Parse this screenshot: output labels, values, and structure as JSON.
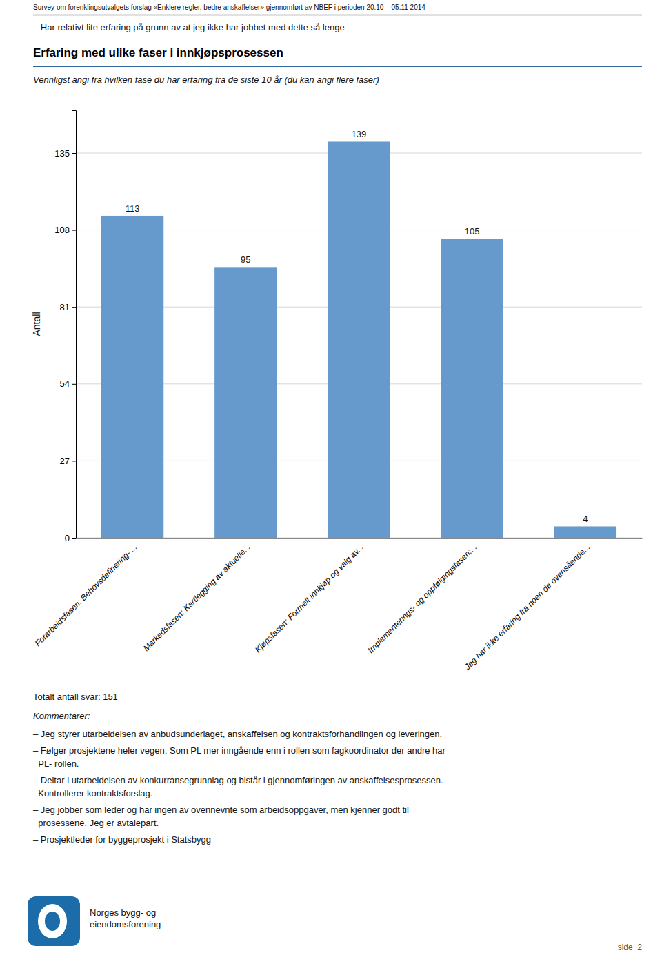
{
  "header": "Survey om forenklingsutvalgets forslag «Enklere regler, bedre anskaffelser» gjennomført av NBEF i perioden 20.10 – 05.11 2014",
  "intro": "– Har relativt lite erfaring på grunn av at jeg ikke har jobbet med dette så lenge",
  "chart_data": {
    "type": "bar",
    "title": "Erfaring med ulike faser i innkjøpsprosessen",
    "subtitle": "Vennligst angi fra hvilken fase du har erfaring fra de siste 10 år (du kan angi flere faser)",
    "y_label": "Antall",
    "categories": [
      "Forarbeidsfasen: Behovsdefinering- ...",
      "Markedsfasen: Kartlegging av aktuelle...",
      "Kjøpsfasen: Formelt innkjøp og valg av...",
      "Implementerings- og oppfølgingsfasen:...",
      "Jeg har ikke erfaring fra noen de ovensående..."
    ],
    "values": [
      113,
      95,
      139,
      105,
      4
    ],
    "color": "#6699CC",
    "ylim": [
      0,
      150
    ],
    "yticks": [
      0,
      27,
      54,
      81,
      108,
      135
    ],
    "grid": true,
    "data_labels": true
  },
  "total": "Totalt antall svar: 151",
  "comments_header": "Kommentarer:",
  "comments": [
    [
      "– Jeg styrer utarbeidelsen av anbudsunderlaget, anskaffelsen og kontraktsforhandlingen og leveringen."
    ],
    [
      "– Følger prosjektene heler vegen. Som PL mer inngående enn i rollen som fagkoordinator der andre har",
      "  PL- rollen."
    ],
    [
      "– Deltar i utarbeidelsen av konkurransegrunnlag og bistår i gjennomføringen av anskaffelsesprosessen.",
      "  Kontrollerer kontraktsforslag."
    ],
    [
      "– Jeg jobber som leder og har ingen av ovennevnte som arbeidsoppgaver, men kjenner godt til",
      "  prosessene. Jeg er avtalepart."
    ],
    [
      "– Prosjektleder for byggeprosjekt i Statsbygg"
    ]
  ],
  "footer": "side  2",
  "logo_text": [
    "Norges bygg- og",
    "eiendomsforening"
  ]
}
